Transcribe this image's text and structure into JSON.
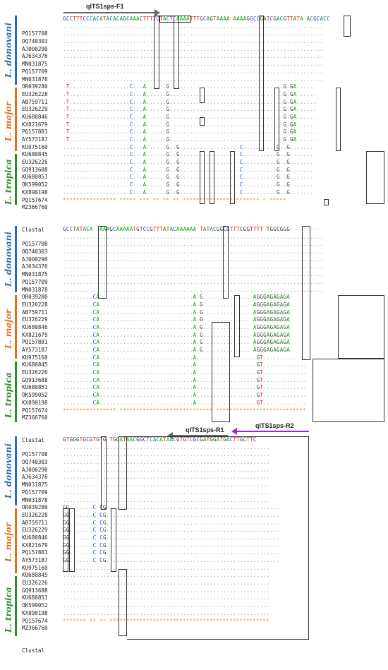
{
  "species": {
    "donovani": {
      "label": "L. donovani",
      "color": "#2a6bb5"
    },
    "major": {
      "label": "L. major",
      "color": "#e07020"
    },
    "tropica": {
      "label": "L. tropica",
      "color": "#2e8b2e"
    }
  },
  "primers": {
    "f1": {
      "label": "qITS1sps-F1",
      "arrow_color": "#666666"
    },
    "r1": {
      "label": "qITS1sps-R1",
      "arrow_color": "#666666"
    },
    "r2": {
      "label": "qITS1sps-R2",
      "arrow_color": "#8a2be2"
    }
  },
  "consensus_label": "Clustal",
  "accessions": [
    "PQ157708",
    "OQ740303",
    "AJ000290",
    "AJ634376",
    "MN031875",
    "PQ157709",
    "MN031878",
    "OR039280",
    "EU326228",
    "AB759711",
    "EU326229",
    "KU680846",
    "KX821679",
    "PQ157881",
    "AY573187",
    "KU975160",
    "KU680845",
    "EU326226",
    "GQ913688",
    "KU680851",
    "OK599052",
    "KX890198",
    "PQ157674",
    "MZ366760"
  ],
  "blocks": [
    {
      "ref": "GCCTTTCCCACATACACAGCAAACTTTTCTACTCAAAATTTGCAGTAAAA AAAAGGCCGATCGACGTTATA ACGCACC",
      "donovani": "..............................................................................",
      "major": ".T..................C...A......G..................................G.GA......",
      "tropica": "....................C...A......G..G..................C..........G..G.......",
      "clustal": "**************** ***** *** ** ** ** *********************** * *****"
    },
    {
      "ref": "GCCTATACA  AAAGCAAAAATGTCCGTTTATACAAAAAA TATACGGCGTTTCGGTTTT TGGCGGG---------",
      "donovani": "..............................................................................",
      "major": ".........CA............................A.G.............. AGGGAGAGAGA",
      "tropica": ".........CA............................A..................GT.............",
      "clustal": "**************** **************************** ***************************"
    },
    {
      "ref": "GTGGGTGCGTGTG TGGATAACGGCTCACATAACGTGTCGCGATGGATGACTTGCTTC",
      "donovani": "..............................................................",
      "major": "GG.......C CG....................................................",
      "tropica": "..............................................................",
      "clustal": "******* ** ** ************************************************"
    }
  ]
}
